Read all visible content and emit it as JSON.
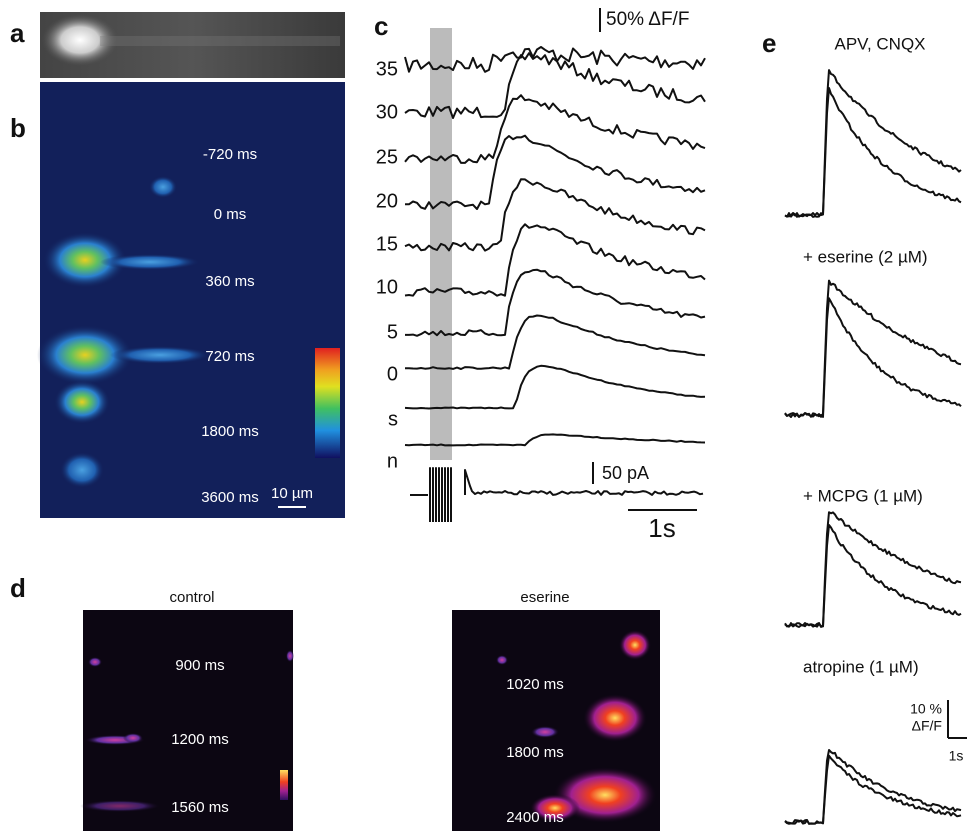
{
  "panels": {
    "a": {
      "label": "a"
    },
    "b": {
      "label": "b",
      "times": [
        "-720 ms",
        "0 ms",
        "360 ms",
        "720 ms",
        "1800 ms",
        "3600 ms"
      ],
      "scale_bar": "10 µm"
    },
    "c": {
      "label": "c",
      "scale_df": "50% ΔF/F",
      "traces": [
        "35",
        "30",
        "25",
        "20",
        "15",
        "10",
        "5",
        "0",
        "s",
        "n"
      ],
      "scale_current": "50 pA",
      "scale_time": "1s"
    },
    "d": {
      "label": "d",
      "control": {
        "title": "control",
        "times": [
          "900 ms",
          "1200 ms",
          "1560 ms"
        ]
      },
      "eserine": {
        "title": "eserine",
        "times": [
          "1020 ms",
          "1800 ms",
          "2400 ms"
        ]
      }
    },
    "e": {
      "label": "e",
      "conditions": [
        "APV, CNQX",
        "+ eserine (2 µM)",
        "+ MCPG (1 µM)",
        "atropine (1 µM)"
      ],
      "scale_df_value": "10 %",
      "scale_df_unit": "ΔF/F",
      "scale_time": "1s"
    }
  }
}
